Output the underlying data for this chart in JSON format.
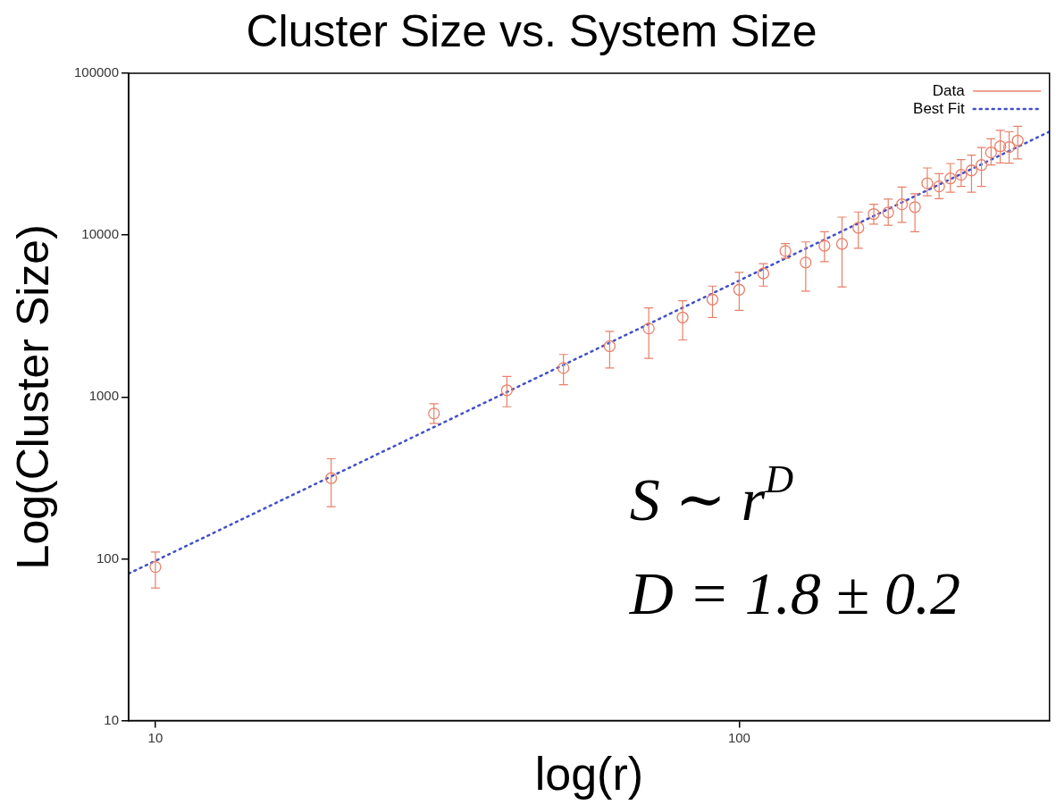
{
  "chart_data": {
    "type": "scatter",
    "title": "Cluster Size vs. System Size",
    "xlabel": "log(r)",
    "ylabel": "Log(Cluster Size)",
    "log": "xy",
    "xlim": [
      9,
      340
    ],
    "ylim": [
      10,
      100000
    ],
    "xticks": [
      10,
      100
    ],
    "yticks": [
      10,
      100,
      1000,
      10000,
      100000
    ],
    "grid": false,
    "legend": "top right",
    "series": [
      {
        "name": "Data",
        "color": "#e8806a",
        "marker": "circle",
        "x": [
          10,
          20,
          30,
          40,
          50,
          60,
          70,
          80,
          90,
          100,
          110,
          120,
          130,
          140,
          150,
          160,
          170,
          180,
          190,
          200,
          210,
          220,
          230,
          240,
          250,
          260,
          270,
          280,
          290,
          300
        ],
        "values": [
          89,
          315,
          790,
          1100,
          1510,
          2060,
          2650,
          3100,
          4000,
          4600,
          5800,
          7980,
          6770,
          8600,
          8830,
          11100,
          13500,
          13800,
          15500,
          14900,
          20900,
          20000,
          22400,
          23600,
          25100,
          27100,
          32400,
          35400,
          35000,
          38400
        ],
        "errors": [
          [
            66,
            110
          ],
          [
            210,
            415
          ],
          [
            686,
            908
          ],
          [
            870,
            1340
          ],
          [
            1190,
            1830
          ],
          [
            1510,
            2540
          ],
          [
            1730,
            3550
          ],
          [
            2250,
            3930
          ],
          [
            3100,
            4840
          ],
          [
            3430,
            5880
          ],
          [
            4840,
            6660
          ],
          [
            7180,
            8860
          ],
          [
            4500,
            9080
          ],
          [
            6850,
            10500
          ],
          [
            4780,
            12920
          ],
          [
            8300,
            13900
          ],
          [
            11700,
            15500
          ],
          [
            11500,
            16700
          ],
          [
            12000,
            19800
          ],
          [
            10500,
            18000
          ],
          [
            17500,
            26000
          ],
          [
            16800,
            24000
          ],
          [
            18400,
            27700
          ],
          [
            20000,
            29300
          ],
          [
            18400,
            31200
          ],
          [
            20000,
            34800
          ],
          [
            27100,
            39400
          ],
          [
            27900,
            44400
          ],
          [
            27800,
            43500
          ],
          [
            29600,
            47000
          ]
        ]
      },
      {
        "name": "Best Fit",
        "type": "line",
        "color": "#4050c8",
        "marker": "none",
        "line_style": "dotted",
        "x": [
          9,
          340
        ],
        "values": [
          81,
          43600
        ]
      }
    ],
    "annotations": [
      "S ∼ r$^{D}$",
      "D = 1.8 ± 0.2"
    ]
  }
}
